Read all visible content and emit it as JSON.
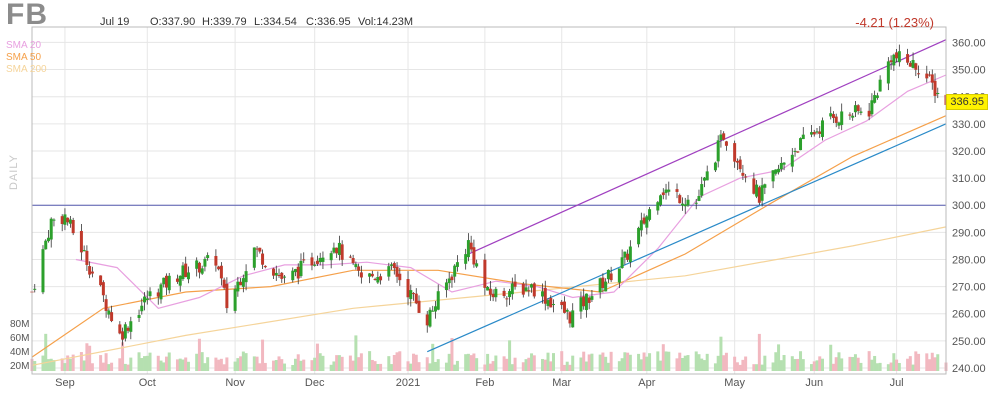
{
  "header": {
    "ticker": "FB",
    "date": "Jul 19",
    "open": "O:337.90",
    "high": "H:339.79",
    "low": "L:334.54",
    "close": "C:336.95",
    "volume": "Vol:14.23M",
    "change": "-4.21 (1.23%)",
    "last_price": "336.95",
    "timeframe": "DAILY"
  },
  "indicators": [
    {
      "label": "SMA 20",
      "color": "#e8a0e0"
    },
    {
      "label": "SMA 50",
      "color": "#f5a04a"
    },
    {
      "label": "SMA 200",
      "color": "#f5d49a"
    }
  ],
  "colors": {
    "up": "#2ca02c",
    "down": "#c0392b",
    "vol_up": "#b5e0b0",
    "vol_down": "#f2b8c0",
    "channel": "#a040c0",
    "trendline": "#2a8ac8",
    "hline": "#555ab0",
    "grid": "#e6e6e6"
  },
  "chart_data": {
    "type": "candlestick",
    "ylim": [
      240,
      362
    ],
    "y_ticks": [
      240,
      250,
      260,
      270,
      280,
      290,
      300,
      310,
      320,
      330,
      340,
      350,
      360
    ],
    "y_tick_labels": [
      "240.00",
      "250.00",
      "260.00",
      "270.00",
      "280.00",
      "290.00",
      "300.00",
      "310.00",
      "320.00",
      "330.00",
      "340.00",
      "350.00",
      "360.00"
    ],
    "x_labels": [
      {
        "label": "Sep",
        "date": "2020-09-01"
      },
      {
        "label": "Oct",
        "date": "2020-10-01"
      },
      {
        "label": "Nov",
        "date": "2020-11-02"
      },
      {
        "label": "Dec",
        "date": "2020-12-01"
      },
      {
        "label": "2021",
        "date": "2021-01-04"
      },
      {
        "label": "Feb",
        "date": "2021-02-01"
      },
      {
        "label": "Mar",
        "date": "2021-03-01"
      },
      {
        "label": "Apr",
        "date": "2021-04-01"
      },
      {
        "label": "May",
        "date": "2021-05-03"
      },
      {
        "label": "Jun",
        "date": "2021-06-01"
      },
      {
        "label": "Jul",
        "date": "2021-07-01"
      }
    ],
    "volume_axis_labels": [
      "80M",
      "60M",
      "40M",
      "20M"
    ],
    "key_points": [
      {
        "date": "2020-08-20",
        "price": 268
      },
      {
        "date": "2020-08-27",
        "price": 294
      },
      {
        "date": "2020-09-01",
        "price": 296
      },
      {
        "date": "2020-09-08",
        "price": 282
      },
      {
        "date": "2020-09-21",
        "price": 252
      },
      {
        "date": "2020-10-01",
        "price": 266
      },
      {
        "date": "2020-10-13",
        "price": 275
      },
      {
        "date": "2020-10-26",
        "price": 280
      },
      {
        "date": "2020-10-30",
        "price": 263
      },
      {
        "date": "2020-11-09",
        "price": 284
      },
      {
        "date": "2020-11-20",
        "price": 272
      },
      {
        "date": "2020-12-08",
        "price": 286
      },
      {
        "date": "2020-12-18",
        "price": 273
      },
      {
        "date": "2020-12-30",
        "price": 276
      },
      {
        "date": "2021-01-11",
        "price": 258
      },
      {
        "date": "2021-01-26",
        "price": 286
      },
      {
        "date": "2021-02-02",
        "price": 267
      },
      {
        "date": "2021-02-18",
        "price": 270
      },
      {
        "date": "2021-03-04",
        "price": 259
      },
      {
        "date": "2021-03-24",
        "price": 280
      },
      {
        "date": "2021-04-06",
        "price": 306
      },
      {
        "date": "2021-04-19",
        "price": 301
      },
      {
        "date": "2021-04-29",
        "price": 326
      },
      {
        "date": "2021-05-12",
        "price": 303
      },
      {
        "date": "2021-05-24",
        "price": 320
      },
      {
        "date": "2021-06-07",
        "price": 332
      },
      {
        "date": "2021-06-21",
        "price": 335
      },
      {
        "date": "2021-06-29",
        "price": 355
      },
      {
        "date": "2021-07-09",
        "price": 351
      },
      {
        "date": "2021-07-19",
        "price": 336.95
      }
    ],
    "sma20": [
      {
        "date": "2020-09-05",
        "price": 280
      },
      {
        "date": "2020-09-20",
        "price": 277
      },
      {
        "date": "2020-10-05",
        "price": 262
      },
      {
        "date": "2020-10-20",
        "price": 266
      },
      {
        "date": "2020-11-05",
        "price": 274
      },
      {
        "date": "2020-11-20",
        "price": 278
      },
      {
        "date": "2020-12-05",
        "price": 278
      },
      {
        "date": "2020-12-20",
        "price": 279
      },
      {
        "date": "2021-01-05",
        "price": 277
      },
      {
        "date": "2021-01-20",
        "price": 268
      },
      {
        "date": "2021-02-05",
        "price": 272
      },
      {
        "date": "2021-02-20",
        "price": 270
      },
      {
        "date": "2021-03-05",
        "price": 266
      },
      {
        "date": "2021-03-20",
        "price": 268
      },
      {
        "date": "2021-04-05",
        "price": 284
      },
      {
        "date": "2021-04-20",
        "price": 303
      },
      {
        "date": "2021-05-05",
        "price": 310
      },
      {
        "date": "2021-05-20",
        "price": 313
      },
      {
        "date": "2021-06-05",
        "price": 324
      },
      {
        "date": "2021-06-20",
        "price": 331
      },
      {
        "date": "2021-07-05",
        "price": 342
      },
      {
        "date": "2021-07-19",
        "price": 348
      }
    ],
    "sma50": [
      {
        "date": "2020-08-20",
        "price": 244
      },
      {
        "date": "2020-09-15",
        "price": 262
      },
      {
        "date": "2020-10-15",
        "price": 268
      },
      {
        "date": "2020-11-15",
        "price": 270
      },
      {
        "date": "2020-12-15",
        "price": 276
      },
      {
        "date": "2021-01-15",
        "price": 276
      },
      {
        "date": "2021-02-15",
        "price": 271
      },
      {
        "date": "2021-03-15",
        "price": 268
      },
      {
        "date": "2021-04-15",
        "price": 282
      },
      {
        "date": "2021-05-15",
        "price": 300
      },
      {
        "date": "2021-06-15",
        "price": 318
      },
      {
        "date": "2021-07-19",
        "price": 333
      }
    ],
    "sma200": [
      {
        "date": "2020-08-20",
        "price": 241
      },
      {
        "date": "2020-10-15",
        "price": 252
      },
      {
        "date": "2020-12-15",
        "price": 262
      },
      {
        "date": "2021-02-15",
        "price": 268
      },
      {
        "date": "2021-04-15",
        "price": 274
      },
      {
        "date": "2021-06-15",
        "price": 285
      },
      {
        "date": "2021-07-19",
        "price": 292
      }
    ],
    "channel_line": [
      {
        "date": "2021-01-26",
        "price": 282
      },
      {
        "date": "2021-07-19",
        "price": 361
      }
    ],
    "trend_line": [
      {
        "date": "2021-01-11",
        "price": 246
      },
      {
        "date": "2021-07-19",
        "price": 330
      }
    ],
    "horizontal_line": 300
  }
}
